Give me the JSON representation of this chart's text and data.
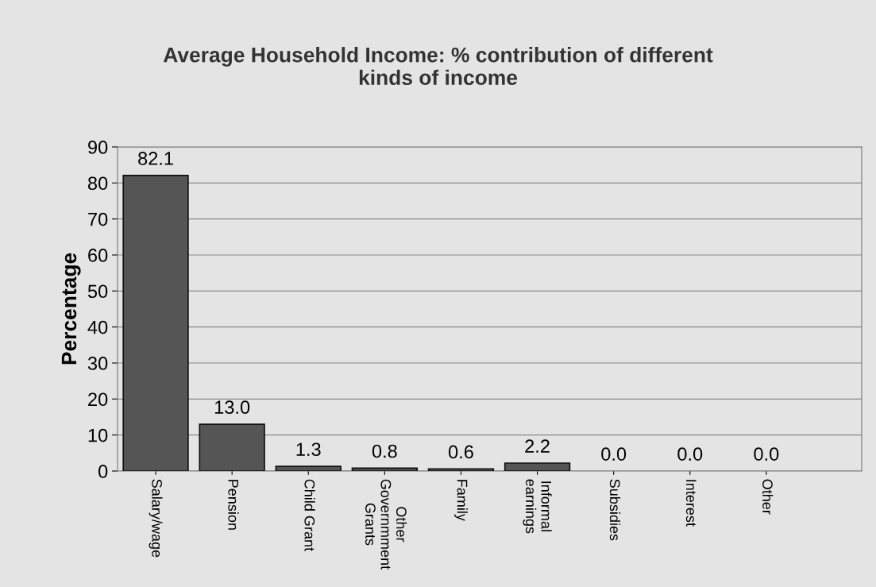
{
  "chart_data": {
    "type": "bar",
    "title": "Average Household Income: % contribution of different\nkinds of income",
    "ylabel": "Percentage",
    "categories": [
      "Salary/wage",
      "Pension",
      "Child Grant",
      "Other\nGovernmment\nGrants",
      "Family",
      "Informal\nearnings",
      "Subsidies",
      "Interest",
      "Other"
    ],
    "values": [
      82.1,
      13.0,
      1.3,
      0.8,
      0.6,
      2.2,
      0.0,
      0.0,
      0.0
    ],
    "value_labels": [
      "82.1",
      "13.0",
      "1.3",
      "0.8",
      "0.6",
      "2.2",
      "0.0",
      "0.0",
      "0.0"
    ],
    "color": "#555555",
    "ylim": [
      0,
      90
    ],
    "yticks": [
      0,
      10,
      20,
      30,
      40,
      50,
      60,
      70,
      80,
      90
    ],
    "grid": "y",
    "legend": false
  }
}
